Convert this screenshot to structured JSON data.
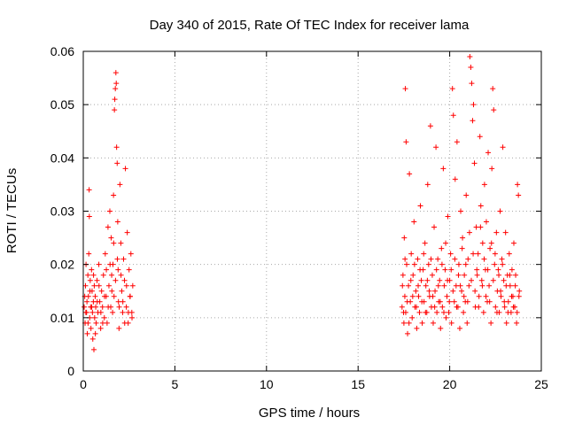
{
  "chart_data": {
    "type": "scatter",
    "title": "Day 340 of 2015, Rate Of TEC Index for receiver lama",
    "xlabel": "GPS time / hours",
    "ylabel": "ROTI / TECUs",
    "xlim": [
      0,
      25
    ],
    "ylim": [
      0,
      0.06
    ],
    "xticks": [
      "0",
      "5",
      "10",
      "15",
      "20",
      "25"
    ],
    "yticks": [
      "0",
      "0.01",
      "0.02",
      "0.03",
      "0.04",
      "0.05",
      "0.06"
    ],
    "grid": true,
    "marker": "plus",
    "color": "#ff0000",
    "series": [
      {
        "values": [
          [
            0.05,
            0.012
          ],
          [
            0.1,
            0.009
          ],
          [
            0.12,
            0.016
          ],
          [
            0.15,
            0.02
          ],
          [
            0.18,
            0.011
          ],
          [
            0.2,
            0.013
          ],
          [
            0.22,
            0.007
          ],
          [
            0.25,
            0.018
          ],
          [
            0.28,
            0.014
          ],
          [
            0.3,
            0.022
          ],
          [
            0.32,
            0.034
          ],
          [
            0.33,
            0.029
          ],
          [
            0.35,
            0.01
          ],
          [
            0.38,
            0.017
          ],
          [
            0.4,
            0.012
          ],
          [
            0.42,
            0.008
          ],
          [
            0.45,
            0.019
          ],
          [
            0.48,
            0.015
          ],
          [
            0.5,
            0.011
          ],
          [
            0.52,
            0.006
          ],
          [
            0.55,
            0.013
          ],
          [
            0.58,
            0.004
          ],
          [
            0.6,
            0.016
          ],
          [
            0.62,
            0.01
          ],
          [
            0.65,
            0.014
          ],
          [
            0.68,
            0.012
          ],
          [
            0.7,
            0.009
          ],
          [
            0.75,
            0.017
          ],
          [
            0.8,
            0.011
          ],
          [
            0.85,
            0.02
          ],
          [
            0.9,
            0.013
          ],
          [
            0.95,
            0.008
          ],
          [
            1.0,
            0.015
          ],
          [
            1.05,
            0.012
          ],
          [
            1.1,
            0.018
          ],
          [
            1.15,
            0.01
          ],
          [
            1.2,
            0.022
          ],
          [
            1.25,
            0.014
          ],
          [
            1.3,
            0.009
          ],
          [
            1.35,
            0.027
          ],
          [
            1.4,
            0.016
          ],
          [
            1.45,
            0.03
          ],
          [
            1.5,
            0.012
          ],
          [
            1.52,
            0.025
          ],
          [
            1.55,
            0.018
          ],
          [
            1.6,
            0.011
          ],
          [
            1.62,
            0.02
          ],
          [
            1.65,
            0.033
          ],
          [
            1.68,
            0.014
          ],
          [
            1.7,
            0.049
          ],
          [
            1.72,
            0.051
          ],
          [
            1.75,
            0.053
          ],
          [
            1.78,
            0.056
          ],
          [
            1.8,
            0.054
          ],
          [
            1.82,
            0.042
          ],
          [
            1.85,
            0.039
          ],
          [
            1.88,
            0.028
          ],
          [
            1.9,
            0.019
          ],
          [
            1.92,
            0.013
          ],
          [
            1.95,
            0.008
          ],
          [
            2.0,
            0.035
          ],
          [
            2.05,
            0.024
          ],
          [
            2.1,
            0.015
          ],
          [
            2.15,
            0.011
          ],
          [
            2.2,
            0.021
          ],
          [
            2.25,
            0.017
          ],
          [
            2.3,
            0.038
          ],
          [
            2.35,
            0.012
          ],
          [
            2.4,
            0.026
          ],
          [
            2.45,
            0.009
          ],
          [
            2.5,
            0.019
          ],
          [
            2.55,
            0.014
          ],
          [
            2.6,
            0.022
          ],
          [
            2.65,
            0.011
          ],
          [
            2.7,
            0.016
          ],
          [
            0.08,
            0.014
          ],
          [
            0.14,
            0.011
          ],
          [
            0.26,
            0.009
          ],
          [
            0.36,
            0.015
          ],
          [
            0.46,
            0.012
          ],
          [
            0.56,
            0.018
          ],
          [
            0.66,
            0.007
          ],
          [
            0.76,
            0.013
          ],
          [
            0.86,
            0.016
          ],
          [
            0.96,
            0.011
          ],
          [
            1.06,
            0.009
          ],
          [
            1.16,
            0.014
          ],
          [
            1.26,
            0.019
          ],
          [
            1.36,
            0.012
          ],
          [
            1.46,
            0.02
          ],
          [
            1.56,
            0.015
          ],
          [
            1.66,
            0.024
          ],
          [
            1.76,
            0.017
          ],
          [
            1.86,
            0.021
          ],
          [
            1.96,
            0.012
          ],
          [
            2.06,
            0.018
          ],
          [
            2.16,
            0.013
          ],
          [
            2.26,
            0.009
          ],
          [
            2.36,
            0.016
          ],
          [
            2.46,
            0.011
          ],
          [
            2.56,
            0.014
          ],
          [
            2.66,
            0.01
          ],
          [
            17.4,
            0.012
          ],
          [
            17.45,
            0.018
          ],
          [
            17.5,
            0.009
          ],
          [
            17.52,
            0.025
          ],
          [
            17.55,
            0.014
          ],
          [
            17.58,
            0.053
          ],
          [
            17.6,
            0.011
          ],
          [
            17.62,
            0.043
          ],
          [
            17.65,
            0.02
          ],
          [
            17.7,
            0.007
          ],
          [
            17.75,
            0.016
          ],
          [
            17.8,
            0.037
          ],
          [
            17.85,
            0.013
          ],
          [
            17.9,
            0.022
          ],
          [
            17.95,
            0.01
          ],
          [
            18.0,
            0.018
          ],
          [
            18.05,
            0.028
          ],
          [
            18.1,
            0.012
          ],
          [
            18.15,
            0.015
          ],
          [
            18.2,
            0.008
          ],
          [
            18.25,
            0.021
          ],
          [
            18.3,
            0.014
          ],
          [
            18.35,
            0.011
          ],
          [
            18.4,
            0.031
          ],
          [
            18.45,
            0.017
          ],
          [
            18.5,
            0.009
          ],
          [
            18.55,
            0.019
          ],
          [
            18.6,
            0.013
          ],
          [
            18.65,
            0.024
          ],
          [
            18.7,
            0.016
          ],
          [
            18.75,
            0.011
          ],
          [
            18.8,
            0.035
          ],
          [
            18.85,
            0.02
          ],
          [
            18.9,
            0.014
          ],
          [
            18.95,
            0.046
          ],
          [
            19.0,
            0.012
          ],
          [
            19.05,
            0.018
          ],
          [
            19.1,
            0.009
          ],
          [
            19.15,
            0.027
          ],
          [
            19.2,
            0.015
          ],
          [
            19.25,
            0.042
          ],
          [
            19.3,
            0.011
          ],
          [
            19.35,
            0.021
          ],
          [
            19.4,
            0.013
          ],
          [
            19.45,
            0.017
          ],
          [
            19.5,
            0.008
          ],
          [
            19.55,
            0.023
          ],
          [
            19.6,
            0.012
          ],
          [
            19.65,
            0.038
          ],
          [
            19.7,
            0.016
          ],
          [
            19.75,
            0.019
          ],
          [
            19.8,
            0.01
          ],
          [
            19.85,
            0.014
          ],
          [
            19.9,
            0.029
          ],
          [
            19.95,
            0.011
          ],
          [
            20.0,
            0.017
          ],
          [
            20.05,
            0.022
          ],
          [
            20.1,
            0.009
          ],
          [
            20.15,
            0.053
          ],
          [
            20.2,
            0.048
          ],
          [
            20.25,
            0.013
          ],
          [
            20.3,
            0.036
          ],
          [
            20.35,
            0.016
          ],
          [
            20.4,
            0.043
          ],
          [
            20.45,
            0.012
          ],
          [
            20.5,
            0.02
          ],
          [
            20.55,
            0.008
          ],
          [
            20.6,
            0.03
          ],
          [
            20.65,
            0.015
          ],
          [
            20.7,
            0.025
          ],
          [
            20.75,
            0.011
          ],
          [
            20.8,
            0.018
          ],
          [
            20.85,
            0.013
          ],
          [
            20.9,
            0.033
          ],
          [
            20.95,
            0.009
          ],
          [
            21.0,
            0.021
          ],
          [
            21.05,
            0.016
          ],
          [
            21.1,
            0.059
          ],
          [
            21.15,
            0.057
          ],
          [
            21.2,
            0.054
          ],
          [
            21.25,
            0.047
          ],
          [
            21.3,
            0.05
          ],
          [
            21.35,
            0.039
          ],
          [
            21.4,
            0.012
          ],
          [
            21.45,
            0.027
          ],
          [
            21.5,
            0.018
          ],
          [
            21.55,
            0.022
          ],
          [
            21.6,
            0.014
          ],
          [
            21.65,
            0.044
          ],
          [
            21.7,
            0.031
          ],
          [
            21.75,
            0.017
          ],
          [
            21.8,
            0.024
          ],
          [
            21.85,
            0.011
          ],
          [
            21.9,
            0.035
          ],
          [
            21.95,
            0.019
          ],
          [
            22.0,
            0.028
          ],
          [
            22.05,
            0.013
          ],
          [
            22.1,
            0.041
          ],
          [
            22.15,
            0.016
          ],
          [
            22.2,
            0.023
          ],
          [
            22.25,
            0.009
          ],
          [
            22.3,
            0.038
          ],
          [
            22.35,
            0.053
          ],
          [
            22.4,
            0.049
          ],
          [
            22.45,
            0.02
          ],
          [
            22.5,
            0.012
          ],
          [
            22.55,
            0.026
          ],
          [
            22.6,
            0.015
          ],
          [
            22.65,
            0.019
          ],
          [
            22.7,
            0.011
          ],
          [
            22.75,
            0.03
          ],
          [
            22.8,
            0.014
          ],
          [
            22.85,
            0.021
          ],
          [
            22.9,
            0.042
          ],
          [
            22.95,
            0.017
          ],
          [
            23.0,
            0.012
          ],
          [
            23.05,
            0.026
          ],
          [
            23.1,
            0.009
          ],
          [
            23.15,
            0.018
          ],
          [
            23.2,
            0.013
          ],
          [
            23.25,
            0.022
          ],
          [
            23.3,
            0.016
          ],
          [
            23.35,
            0.011
          ],
          [
            23.4,
            0.019
          ],
          [
            23.45,
            0.014
          ],
          [
            23.5,
            0.024
          ],
          [
            23.55,
            0.012
          ],
          [
            23.6,
            0.018
          ],
          [
            23.65,
            0.009
          ],
          [
            23.7,
            0.035
          ],
          [
            23.75,
            0.033
          ],
          [
            23.8,
            0.015
          ],
          [
            17.42,
            0.016
          ],
          [
            17.48,
            0.011
          ],
          [
            17.56,
            0.021
          ],
          [
            17.68,
            0.013
          ],
          [
            17.78,
            0.009
          ],
          [
            17.88,
            0.017
          ],
          [
            17.98,
            0.014
          ],
          [
            18.08,
            0.02
          ],
          [
            18.18,
            0.012
          ],
          [
            18.28,
            0.016
          ],
          [
            18.38,
            0.019
          ],
          [
            18.48,
            0.013
          ],
          [
            18.58,
            0.022
          ],
          [
            18.68,
            0.011
          ],
          [
            18.78,
            0.017
          ],
          [
            18.88,
            0.015
          ],
          [
            18.98,
            0.021
          ],
          [
            19.08,
            0.014
          ],
          [
            19.18,
            0.012
          ],
          [
            19.28,
            0.019
          ],
          [
            19.38,
            0.016
          ],
          [
            19.48,
            0.013
          ],
          [
            19.58,
            0.02
          ],
          [
            19.68,
            0.011
          ],
          [
            19.78,
            0.024
          ],
          [
            19.88,
            0.017
          ],
          [
            19.98,
            0.013
          ],
          [
            20.08,
            0.019
          ],
          [
            20.18,
            0.015
          ],
          [
            20.28,
            0.021
          ],
          [
            20.38,
            0.012
          ],
          [
            20.48,
            0.018
          ],
          [
            20.58,
            0.016
          ],
          [
            20.68,
            0.023
          ],
          [
            20.78,
            0.014
          ],
          [
            20.88,
            0.02
          ],
          [
            20.98,
            0.013
          ],
          [
            21.08,
            0.026
          ],
          [
            21.18,
            0.017
          ],
          [
            21.28,
            0.022
          ],
          [
            21.38,
            0.015
          ],
          [
            21.48,
            0.019
          ],
          [
            21.58,
            0.012
          ],
          [
            21.68,
            0.027
          ],
          [
            21.78,
            0.016
          ],
          [
            21.88,
            0.021
          ],
          [
            21.98,
            0.014
          ],
          [
            22.08,
            0.019
          ],
          [
            22.18,
            0.013
          ],
          [
            22.28,
            0.024
          ],
          [
            22.38,
            0.017
          ],
          [
            22.48,
            0.022
          ],
          [
            22.58,
            0.011
          ],
          [
            22.68,
            0.018
          ],
          [
            22.78,
            0.015
          ],
          [
            22.88,
            0.02
          ],
          [
            22.98,
            0.013
          ],
          [
            23.08,
            0.016
          ],
          [
            23.18,
            0.011
          ],
          [
            23.28,
            0.018
          ],
          [
            23.38,
            0.014
          ],
          [
            23.48,
            0.012
          ],
          [
            23.58,
            0.016
          ],
          [
            23.68,
            0.011
          ],
          [
            23.78,
            0.014
          ]
        ]
      }
    ]
  }
}
